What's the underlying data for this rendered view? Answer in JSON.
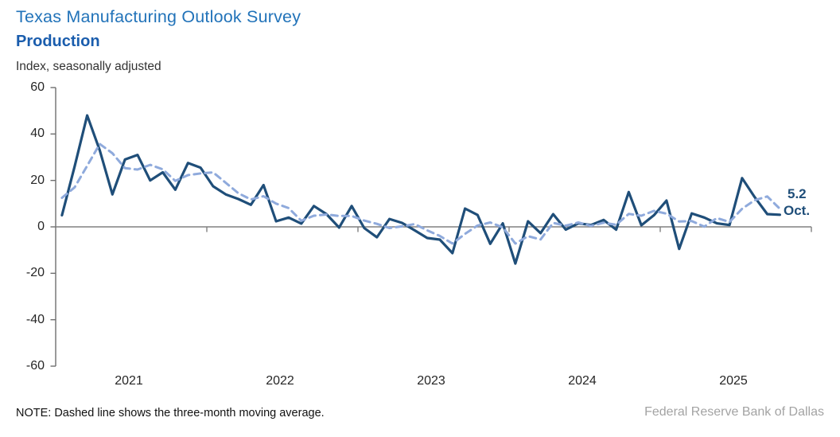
{
  "header": {
    "title": "Texas Manufacturing Outlook Survey",
    "subtitle_bold": "Production",
    "units_label": "Index, seasonally adjusted"
  },
  "footer": {
    "note": "NOTE: Dashed line shows the three-month moving average.",
    "source": "Federal Reserve Bank of Dallas"
  },
  "colors": {
    "title_blue": "#2273B9",
    "subtitle_blue": "#1A5DAD",
    "solid_line": "#1F4E79",
    "dashed_line": "#8FAADC",
    "axis_gray": "#808080",
    "source_gray": "#A3A3A3"
  },
  "chart_data": {
    "type": "line",
    "title": "Texas Manufacturing Outlook Survey",
    "subtitle": "Production",
    "ylabel": "Index, seasonally adjusted",
    "frequency": "monthly",
    "start": "Jan 2021",
    "end": "Oct 2025",
    "ylim": [
      -60,
      60
    ],
    "yticks": [
      60,
      40,
      20,
      0,
      -20,
      -40,
      -60
    ],
    "x_years": [
      2021,
      2022,
      2023,
      2024,
      2025
    ],
    "grid": "zero-line-only",
    "legend": "none",
    "end_label": {
      "value": "5.2",
      "month": "Oct."
    },
    "series": [
      {
        "name": "Production index",
        "style": "solid",
        "color": "#1F4E79",
        "values": [
          5,
          26,
          48,
          33,
          14,
          29,
          31,
          20,
          23.5,
          16,
          27.5,
          25.5,
          17.5,
          14,
          12,
          9.5,
          18,
          2.4,
          4,
          1.4,
          9,
          5.5,
          -0.3,
          9,
          -0.5,
          -4.5,
          3.4,
          1.7,
          -1.5,
          -4.8,
          -5.5,
          -11.3,
          7.9,
          5.1,
          -7.3,
          1.5,
          -15.8,
          2.4,
          -2.7,
          5.5,
          -1.2,
          1.5,
          0.8,
          3,
          -1.2,
          15,
          0.7,
          5,
          11.3,
          -9.5,
          5.8,
          4,
          1.5,
          0.8,
          21,
          12.8,
          5.5,
          5.2
        ]
      },
      {
        "name": "Three-month moving average",
        "style": "dashed",
        "color": "#8FAADC",
        "values": [
          12.5,
          17,
          26.3,
          35.7,
          31.7,
          25.3,
          24.7,
          26.7,
          24.8,
          19.8,
          22.3,
          23.0,
          23.5,
          19.0,
          14.5,
          11.8,
          13.2,
          10.0,
          8.1,
          2.6,
          4.8,
          5.3,
          4.7,
          4.7,
          2.7,
          1.3,
          -0.5,
          0.2,
          1.2,
          -1.5,
          -3.9,
          -7.2,
          -3.0,
          0.6,
          1.9,
          -0.2,
          -7.2,
          -4.0,
          -5.4,
          1.7,
          0.5,
          1.9,
          0.4,
          1.8,
          0.9,
          5.6,
          4.8,
          6.9,
          5.7,
          2.3,
          2.5,
          0.1,
          3.8,
          2.1,
          7.8,
          11.5,
          13.1,
          7.8
        ]
      }
    ]
  }
}
